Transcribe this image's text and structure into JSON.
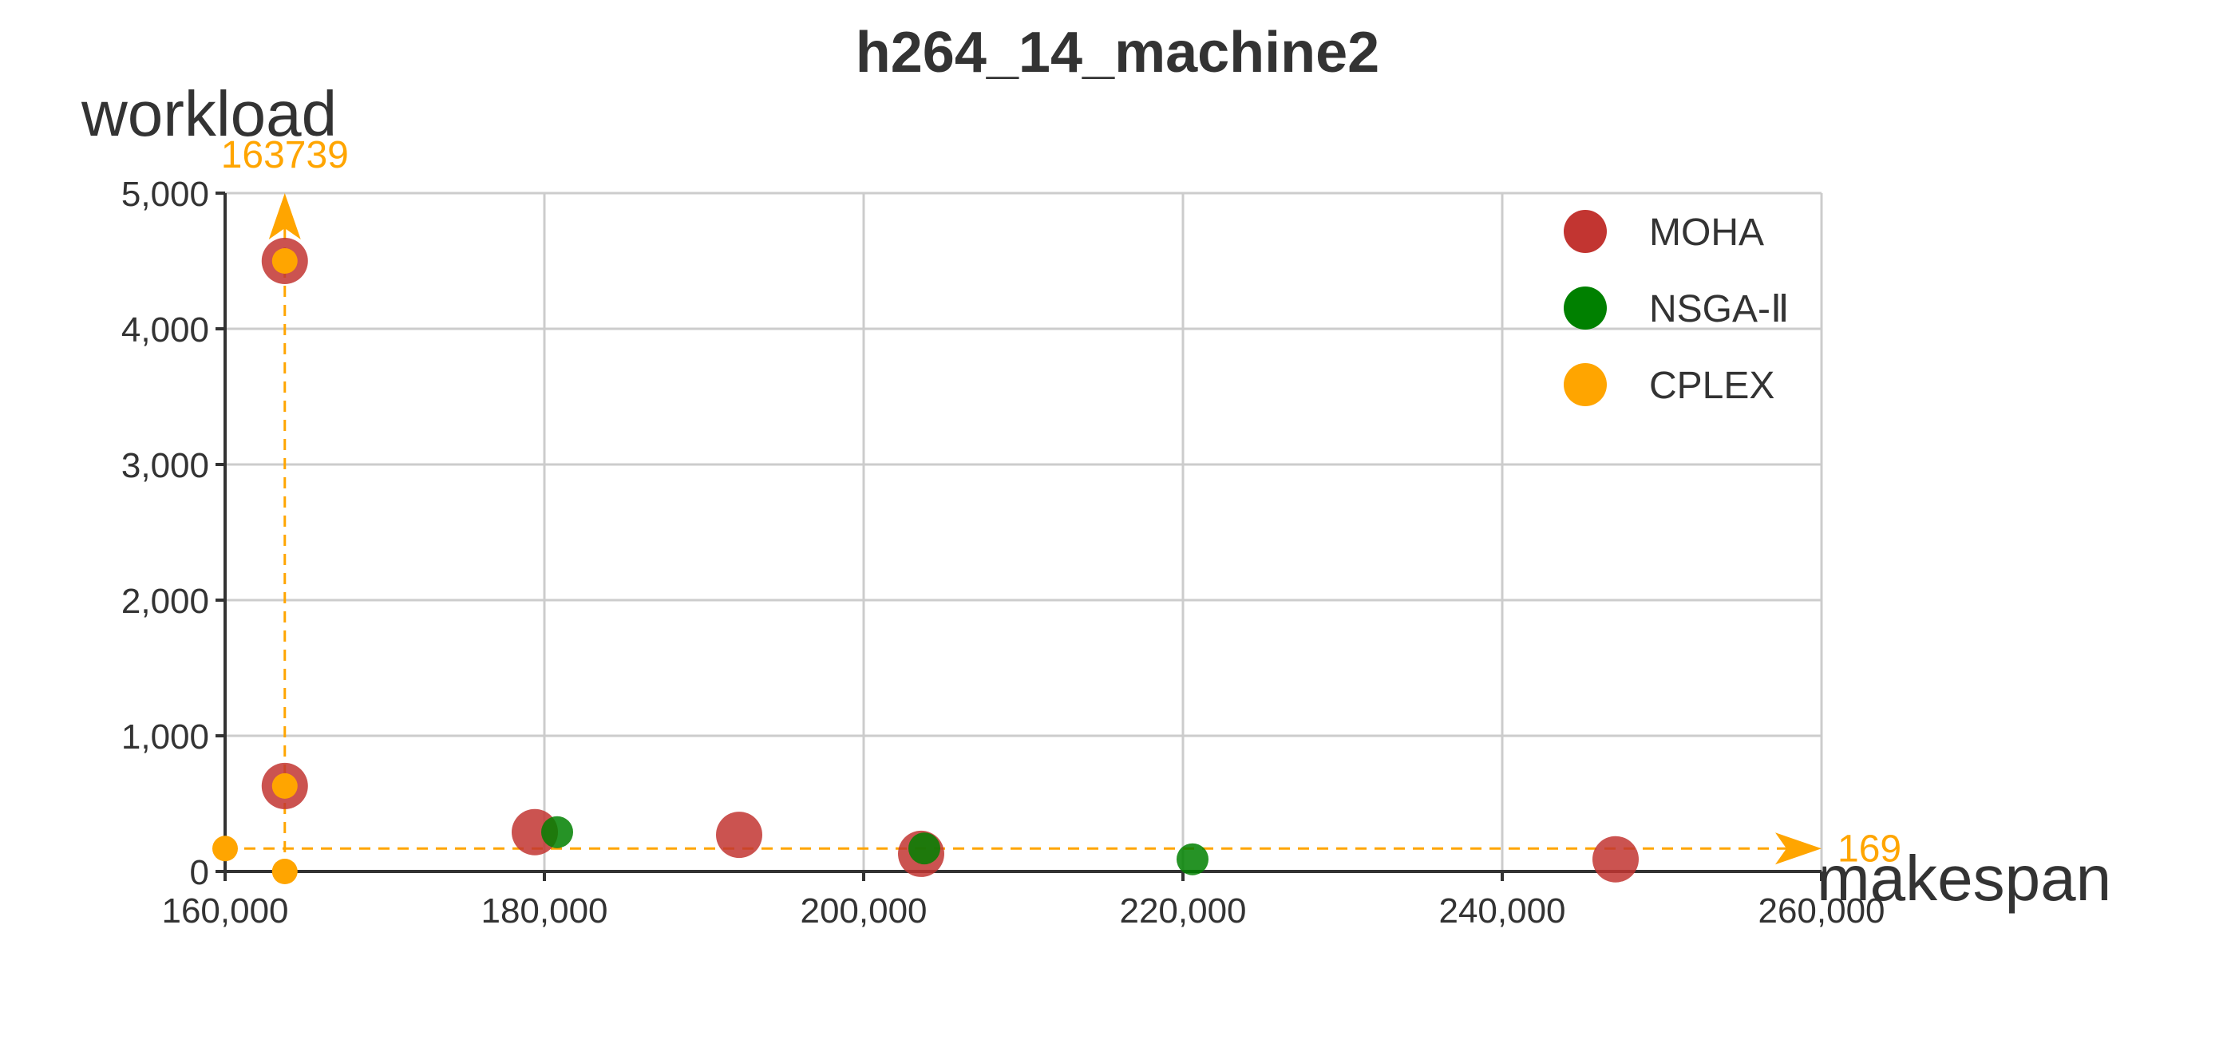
{
  "chart_data": {
    "type": "scatter",
    "title": "h264_14_machine2",
    "xlabel": "makespan",
    "ylabel": "workload",
    "xlim": [
      160000,
      260000
    ],
    "ylim": [
      0,
      5000
    ],
    "x_ticks": [
      160000,
      180000,
      200000,
      220000,
      240000,
      260000
    ],
    "x_tick_labels": [
      "160,000",
      "180,000",
      "200,000",
      "220,000",
      "240,000",
      "260,000"
    ],
    "y_ticks": [
      0,
      1000,
      2000,
      3000,
      4000,
      5000
    ],
    "y_tick_labels": [
      "0",
      "1,000",
      "2,000",
      "3,000",
      "4,000",
      "5,000"
    ],
    "grid": true,
    "legend_position": "top-right",
    "series": [
      {
        "name": "MOHA",
        "color": "#c23531",
        "points": [
          {
            "x": 163739,
            "y": 4500
          },
          {
            "x": 163739,
            "y": 630
          },
          {
            "x": 179400,
            "y": 290
          },
          {
            "x": 192200,
            "y": 270
          },
          {
            "x": 203600,
            "y": 130
          },
          {
            "x": 247100,
            "y": 90
          }
        ]
      },
      {
        "name": "NSGA-Ⅱ",
        "color": "#008000",
        "points": [
          {
            "x": 180800,
            "y": 290
          },
          {
            "x": 203800,
            "y": 170
          },
          {
            "x": 220600,
            "y": 90
          }
        ]
      },
      {
        "name": "CPLEX",
        "color": "#ffa500",
        "points": [
          {
            "x": 163739,
            "y": 4500
          },
          {
            "x": 163739,
            "y": 630
          },
          {
            "x": 163739,
            "y": 0
          },
          {
            "x": 160000,
            "y": 169
          }
        ]
      }
    ],
    "markers": {
      "color": "#ffa500",
      "vertical": {
        "x": 163739,
        "label": "163739"
      },
      "horizontal": {
        "y": 169,
        "label": "169"
      }
    }
  }
}
